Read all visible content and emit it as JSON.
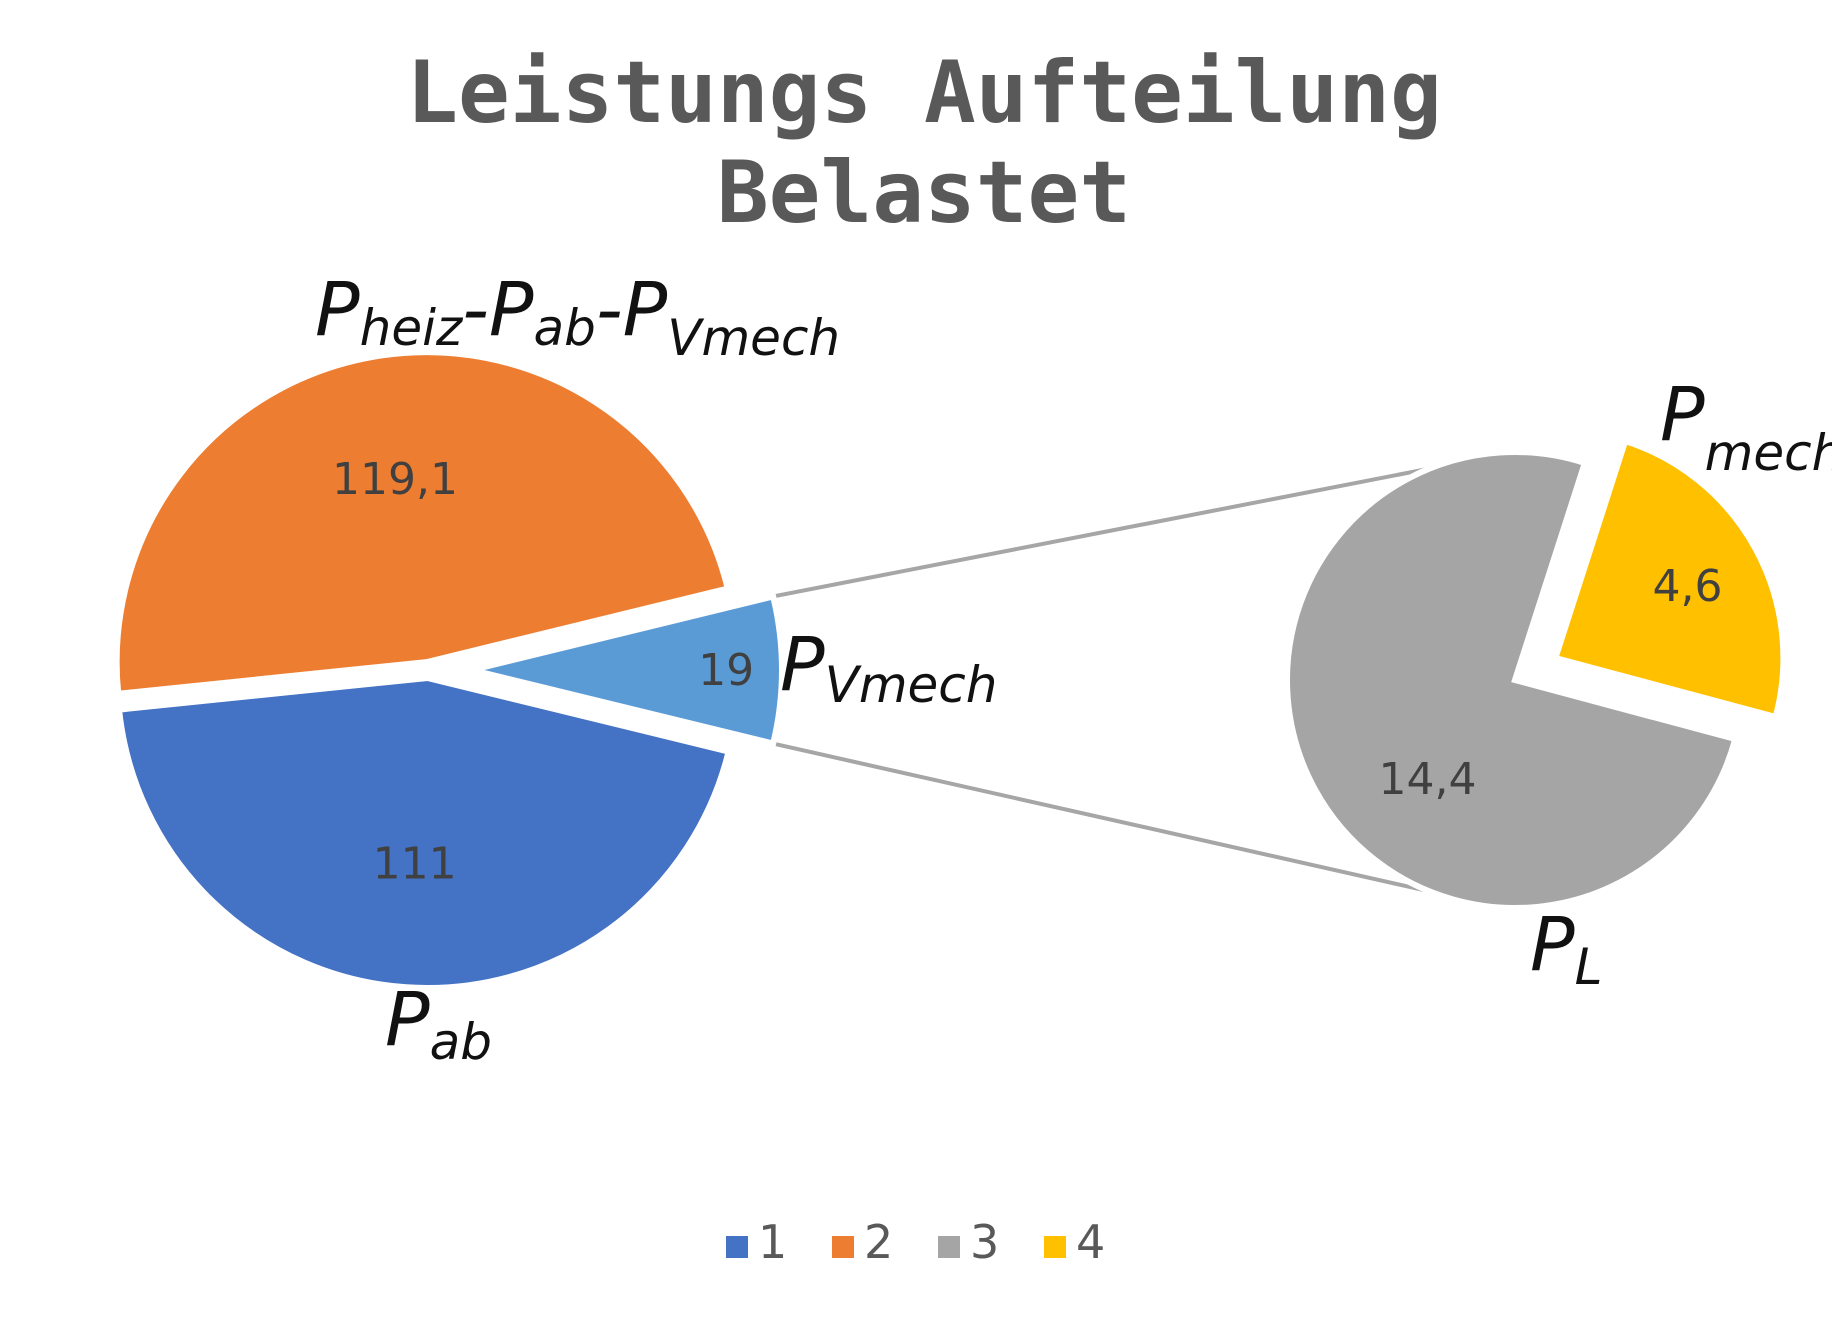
{
  "chart_data": {
    "type": "pie",
    "subtype": "pie-of-pie",
    "title": [
      "Leistungs Aufteilung",
      "Belastet"
    ],
    "main_pie": {
      "slices": [
        {
          "category": "1",
          "value": 111,
          "label": "111",
          "color": "#4472C4"
        },
        {
          "category": "2",
          "value": 119.1,
          "label": "119,1",
          "color": "#ED7D31"
        },
        {
          "category": "other",
          "value": 19,
          "label": "19",
          "color": "#5B9BD5"
        }
      ]
    },
    "secondary_pie": {
      "slices": [
        {
          "category": "3",
          "value": 14.4,
          "label": "14,4",
          "color": "#A5A5A5"
        },
        {
          "category": "4",
          "value": 4.6,
          "label": "4,6",
          "color": "#FFC000"
        }
      ]
    },
    "legend": {
      "position": "bottom",
      "entries": [
        {
          "label": "1",
          "color": "#4472C4"
        },
        {
          "label": "2",
          "color": "#ED7D31"
        },
        {
          "label": "3",
          "color": "#A5A5A5"
        },
        {
          "label": "4",
          "color": "#FFC000"
        }
      ]
    },
    "annotations": [
      {
        "target": "2",
        "base": "P",
        "sub": "heiz",
        "rest": "-P",
        "sub2": "ab",
        "rest2": "-P",
        "sub3": "Vmech"
      },
      {
        "target": "other",
        "base": "P",
        "sub": "Vmech"
      },
      {
        "target": "1",
        "base": "P",
        "sub": "ab"
      },
      {
        "target": "4",
        "base": "P",
        "sub": "mech"
      },
      {
        "target": "3",
        "base": "P",
        "sub": "L"
      }
    ],
    "connector_color": "#A6A6A6"
  }
}
